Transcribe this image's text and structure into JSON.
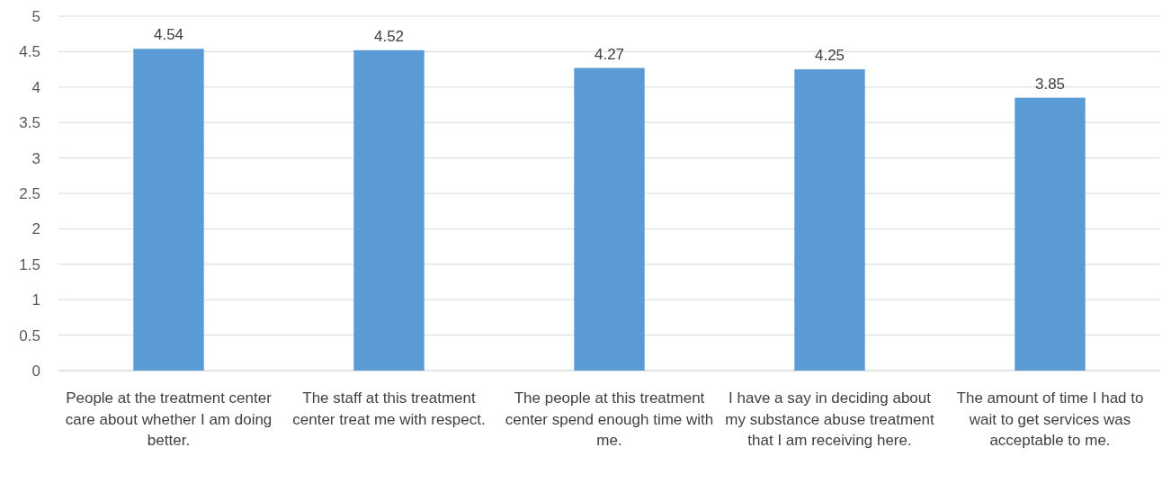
{
  "chart_data": {
    "type": "bar",
    "categories": [
      "People at the treatment center care about whether I am doing better.",
      "The staff at this treatment center treat me with respect.",
      "The people at this treatment center spend enough time with me.",
      "I have a say in deciding about my substance abuse treatment that I am receiving here.",
      "The amount of time I had to wait to get services was acceptable to me."
    ],
    "values": [
      4.54,
      4.52,
      4.27,
      4.25,
      3.85
    ],
    "color": "#5b9bd5",
    "ylim": [
      0,
      5
    ],
    "yticks": [
      0,
      0.5,
      1,
      1.5,
      2,
      2.5,
      3,
      3.5,
      4,
      4.5,
      5
    ],
    "grid": "y",
    "data_labels": true
  }
}
